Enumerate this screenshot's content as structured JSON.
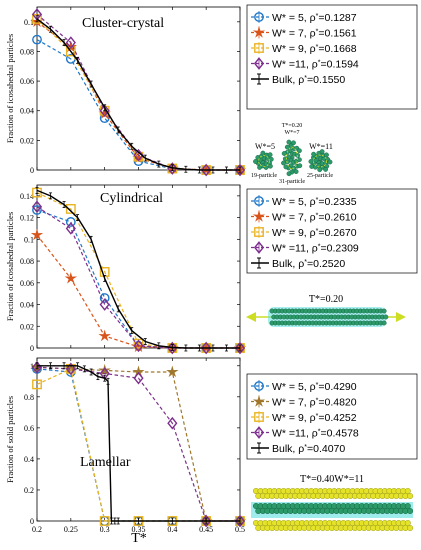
{
  "colors": {
    "blue": "#1f77c8",
    "orange": "#d9541a",
    "yellow": "#e9b321",
    "purple": "#7e2f8e",
    "brown": "#a0762a",
    "black": "#000000",
    "green": "#2d9a6a",
    "cyan": "#5fe0e0",
    "lime": "#ccdd22"
  },
  "xlabel": "T*",
  "chart_data": [
    {
      "type": "line",
      "title": "Cluster-crystal",
      "ylabel": "Fraction of icosahedral particles",
      "xlim": [
        0.2,
        0.5
      ],
      "ylim": [
        0,
        0.11
      ],
      "yticks": [
        0,
        0.02,
        0.04,
        0.06,
        0.08,
        0.1
      ],
      "yticklabels": [
        "0",
        "0.02",
        "0.04",
        "0.06",
        "0.08",
        "0.1"
      ],
      "xticklabels": [
        "",
        "",
        "",
        "",
        "",
        "",
        ""
      ],
      "series": [
        {
          "label": "W* = 5, ",
          "rho": "=0.1287",
          "color": "#1f77c8",
          "marker": "circle",
          "x": [
            0.2,
            0.25,
            0.3,
            0.35,
            0.4,
            0.45,
            0.5
          ],
          "y": [
            0.088,
            0.075,
            0.035,
            0.006,
            0.0008,
            0,
            0
          ]
        },
        {
          "label": "W* = 7, ",
          "rho": "=0.1561",
          "color": "#d9541a",
          "marker": "star",
          "x": [
            0.2,
            0.25,
            0.3,
            0.35,
            0.4,
            0.45,
            0.5
          ],
          "y": [
            0.1,
            0.083,
            0.038,
            0.008,
            0.001,
            0,
            0
          ]
        },
        {
          "label": "W* = 9, ",
          "rho": "=0.1668",
          "color": "#e9b321",
          "marker": "square",
          "x": [
            0.2,
            0.25,
            0.3,
            0.35,
            0.4,
            0.45,
            0.5
          ],
          "y": [
            0.102,
            0.08,
            0.04,
            0.009,
            0.001,
            0,
            0
          ]
        },
        {
          "label": "W* =11, ",
          "rho": "=0.1594",
          "color": "#7e2f8e",
          "marker": "diamond",
          "x": [
            0.2,
            0.25,
            0.3,
            0.35,
            0.4,
            0.45,
            0.5
          ],
          "y": [
            0.105,
            0.086,
            0.04,
            0.01,
            0.001,
            0,
            0
          ]
        }
      ],
      "bulk": {
        "label": "Bulk, ",
        "rho": "=0.1550",
        "x": [
          0.2,
          0.22,
          0.24,
          0.26,
          0.28,
          0.3,
          0.32,
          0.34,
          0.36,
          0.38,
          0.4,
          0.42,
          0.44,
          0.46,
          0.48,
          0.5
        ],
        "y": [
          0.102,
          0.095,
          0.086,
          0.074,
          0.058,
          0.042,
          0.027,
          0.016,
          0.008,
          0.004,
          0.0015,
          0.0005,
          0,
          0,
          0,
          0
        ]
      }
    },
    {
      "type": "line",
      "title": "Cylindrical",
      "ylabel": "Fraction of icosahedral particles",
      "xlim": [
        0.2,
        0.5
      ],
      "ylim": [
        0,
        0.15
      ],
      "yticks": [
        0,
        0.02,
        0.04,
        0.06,
        0.08,
        0.1,
        0.12,
        0.14
      ],
      "yticklabels": [
        "0",
        "0.02",
        "0.04",
        "0.06",
        "0.08",
        "0.1",
        "0.12",
        "0.14"
      ],
      "xticklabels": [
        "",
        "",
        "",
        "",
        "",
        "",
        ""
      ],
      "series": [
        {
          "label": "W* = 5, ",
          "rho": "=0.2335",
          "color": "#1f77c8",
          "marker": "circle",
          "x": [
            0.2,
            0.25,
            0.3,
            0.35,
            0.4,
            0.45,
            0.5
          ],
          "y": [
            0.127,
            0.116,
            0.046,
            0.002,
            0,
            0,
            0
          ]
        },
        {
          "label": "W* = 7, ",
          "rho": "=0.2610",
          "color": "#d9541a",
          "marker": "star",
          "x": [
            0.2,
            0.25,
            0.3,
            0.35,
            0.4,
            0.45,
            0.5
          ],
          "y": [
            0.104,
            0.064,
            0.011,
            0.001,
            0,
            0,
            0
          ]
        },
        {
          "label": "W* = 9, ",
          "rho": "=0.2670",
          "color": "#e9b321",
          "marker": "square",
          "x": [
            0.2,
            0.25,
            0.3,
            0.35,
            0.4,
            0.45,
            0.5
          ],
          "y": [
            0.143,
            0.128,
            0.07,
            0.004,
            0,
            0,
            0
          ]
        },
        {
          "label": "W* =11, ",
          "rho": "=0.2309",
          "color": "#7e2f8e",
          "marker": "diamond",
          "x": [
            0.2,
            0.25,
            0.3,
            0.35,
            0.4,
            0.45,
            0.5
          ],
          "y": [
            0.13,
            0.11,
            0.04,
            0.002,
            0,
            0,
            0
          ]
        }
      ],
      "bulk": {
        "label": "Bulk, ",
        "rho": "=0.2520",
        "x": [
          0.2,
          0.22,
          0.24,
          0.26,
          0.28,
          0.3,
          0.32,
          0.34,
          0.36,
          0.38,
          0.4,
          0.42,
          0.44,
          0.46,
          0.48,
          0.5
        ],
        "y": [
          0.145,
          0.14,
          0.132,
          0.12,
          0.1,
          0.064,
          0.036,
          0.016,
          0.006,
          0.002,
          0.0005,
          0,
          0,
          0,
          0,
          0
        ]
      }
    },
    {
      "type": "line",
      "title": "Lamellar",
      "ylabel": "Fraction of solid particles",
      "xlim": [
        0.2,
        0.5
      ],
      "ylim": [
        0,
        1.05
      ],
      "yticks": [
        0,
        0.2,
        0.4,
        0.6,
        0.8,
        1
      ],
      "yticklabels": [
        "0",
        "0.2",
        "0.4",
        "0.6",
        "0.8",
        "1"
      ],
      "xticklabels": [
        "0.2",
        "0.25",
        "0.3",
        "0.35",
        "0.4",
        "0.45",
        "0.5"
      ],
      "series": [
        {
          "label": "W* = 5, ",
          "rho": "=0.4290",
          "color": "#1f77c8",
          "marker": "circle",
          "x": [
            0.2,
            0.25,
            0.3,
            0.35,
            0.4,
            0.45,
            0.5
          ],
          "y": [
            0.98,
            0.96,
            0,
            0,
            0,
            0,
            0
          ]
        },
        {
          "label": "W* = 7, ",
          "rho": "=0.4820",
          "color": "#a0762a",
          "marker": "star",
          "x": [
            0.2,
            0.25,
            0.3,
            0.35,
            0.4,
            0.45,
            0.5
          ],
          "y": [
            0.99,
            0.98,
            0.97,
            0.96,
            0.96,
            0,
            0
          ]
        },
        {
          "label": "W* = 9, ",
          "rho": "=0.4252",
          "color": "#e9b321",
          "marker": "square",
          "x": [
            0.2,
            0.25,
            0.3,
            0.35,
            0.4,
            0.45,
            0.5
          ],
          "y": [
            0.88,
            0.98,
            0,
            0,
            0,
            0,
            0
          ]
        },
        {
          "label": "W* =11, ",
          "rho": "=0.4578",
          "color": "#7e2f8e",
          "marker": "diamond",
          "x": [
            0.2,
            0.25,
            0.3,
            0.35,
            0.4,
            0.45,
            0.5
          ],
          "y": [
            0.99,
            0.98,
            0.95,
            0.92,
            0.63,
            0,
            0
          ]
        }
      ],
      "bulk": {
        "label": "Bulk, ",
        "rho": "=0.4070",
        "x": [
          0.2,
          0.22,
          0.24,
          0.26,
          0.27,
          0.28,
          0.29,
          0.3,
          0.305,
          0.31,
          0.315,
          0.32,
          0.35,
          0.4,
          0.45,
          0.5
        ],
        "y": [
          1,
          1,
          1,
          1,
          0.98,
          0.96,
          0.93,
          0.92,
          0.9,
          0,
          0,
          0,
          0,
          0,
          0,
          0
        ]
      }
    }
  ],
  "insets": {
    "cluster": {
      "top_label": "T*=0.20",
      "sub_label": "W*=7",
      "left_label": "W*=5",
      "right_label": "W*=11",
      "cap_left": "19-particle",
      "cap_mid": "31-particle",
      "cap_right": "25-particle"
    },
    "cylindrical": {
      "label": "T*=0.20"
    },
    "lamellar": {
      "label": "T*=0.40W*=11"
    }
  }
}
